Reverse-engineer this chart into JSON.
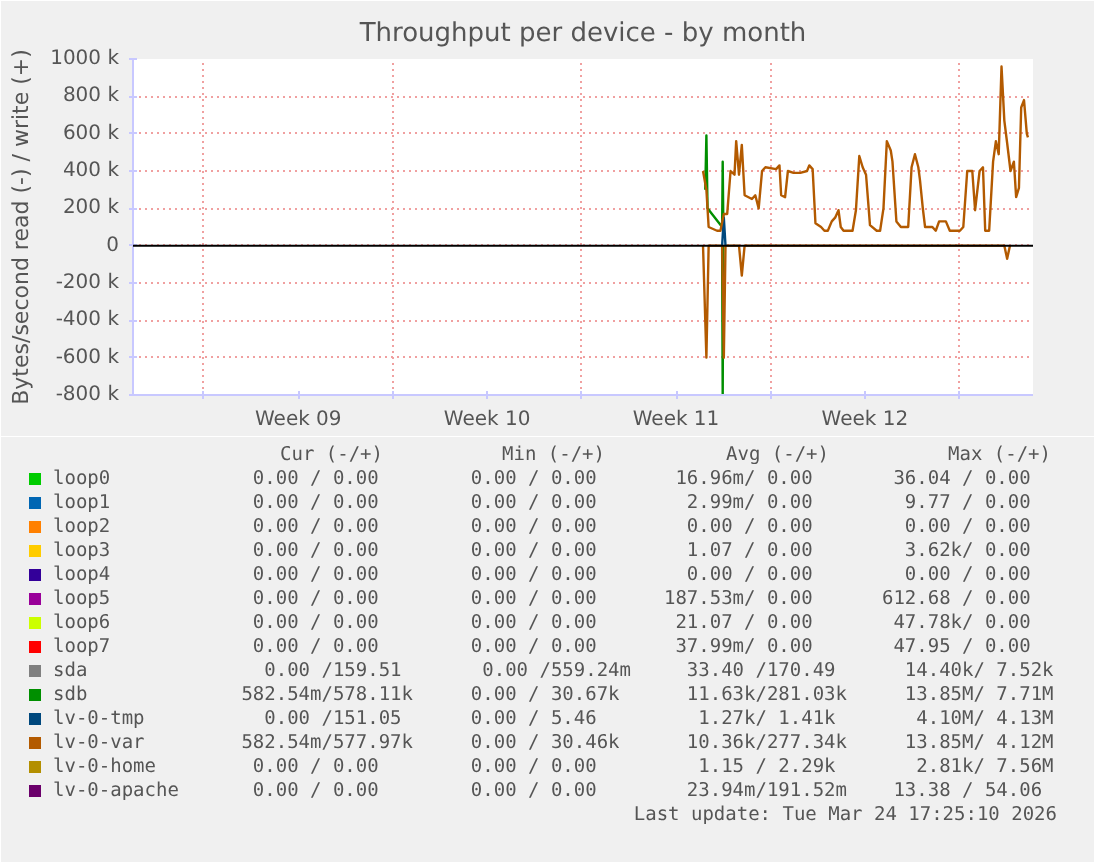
{
  "chart_data": {
    "type": "line",
    "title": "Throughput per device - by month",
    "ylabel": "Bytes/second read (-) / write (+)",
    "xlim": [
      "2026-02-20T09:00",
      "2026-03-25T17:30"
    ],
    "xticks": [
      {
        "value": "2026-02-23T00:00",
        "label": null
      },
      {
        "value": "2026-02-26T12:00",
        "label": "Week 09"
      },
      {
        "value": "2026-03-02T00:00",
        "label": null
      },
      {
        "value": "2026-03-05T12:00",
        "label": "Week 10"
      },
      {
        "value": "2026-03-09T00:00",
        "label": null
      },
      {
        "value": "2026-03-12T12:00",
        "label": "Week 11"
      },
      {
        "value": "2026-03-16T00:00",
        "label": null
      },
      {
        "value": "2026-03-19T12:00",
        "label": "Week 12"
      },
      {
        "value": "2026-03-23T00:00",
        "label": null
      }
    ],
    "ylim": [
      -800000,
      1000000
    ],
    "yticks": [
      {
        "value": -800000,
        "label": "-800 k"
      },
      {
        "value": -600000,
        "label": "-600 k"
      },
      {
        "value": -400000,
        "label": "-400 k"
      },
      {
        "value": -200000,
        "label": "-200 k"
      },
      0,
      {
        "value": 200000,
        "label": "200 k"
      },
      {
        "value": 400000,
        "label": "400 k"
      },
      {
        "value": 600000,
        "label": "600 k"
      },
      {
        "value": 800000,
        "label": "800 k"
      },
      {
        "value": 1000000,
        "label": "1000 k"
      }
    ],
    "grid": true,
    "legend": "bottom",
    "ref_lines": [
      {
        "axis": "y",
        "value": 0,
        "color": "#000000"
      }
    ],
    "series": [
      {
        "name": "loop0",
        "color": "#00cc00"
      },
      {
        "name": "loop1",
        "color": "#0066b3"
      },
      {
        "name": "loop2",
        "color": "#ff8000"
      },
      {
        "name": "loop3",
        "color": "#ffcc00"
      },
      {
        "name": "loop4",
        "color": "#330099"
      },
      {
        "name": "loop5",
        "color": "#990099"
      },
      {
        "name": "loop6",
        "color": "#ccff00"
      },
      {
        "name": "loop7",
        "color": "#ff0000"
      },
      {
        "name": "sda",
        "color": "#808080"
      },
      {
        "name": "sdb",
        "color": "#008f00",
        "x": [
          "2026-03-13T14:00",
          "2026-03-13T15:00",
          "2026-03-13T16:00",
          "2026-03-14T05:00",
          "2026-03-14T05:30",
          "2026-03-14T06:00"
        ],
        "values": [
          300000,
          590000,
          200000,
          100000,
          450000,
          150000
        ]
      },
      {
        "name": "lv-0-tmp",
        "color": "#00487d",
        "x": [
          "2026-03-14T05:00",
          "2026-03-14T06:30",
          "2026-03-14T08:00"
        ],
        "values": [
          0,
          150000,
          0
        ]
      },
      {
        "name": "lv-0-var",
        "color": "#b35a00",
        "x": [
          "2026-03-13T12:00",
          "2026-03-13T15:00",
          "2026-03-13T17:00",
          "2026-03-14T00:30",
          "2026-03-14T03:30",
          "2026-03-14T06:30",
          "2026-03-14T09:30",
          "2026-03-14T12:30",
          "2026-03-14T16:00",
          "2026-03-14T17:30",
          "2026-03-14T20:00",
          "2026-03-14T22:30",
          "2026-03-15T01:00",
          "2026-03-15T07:30",
          "2026-03-15T10:30",
          "2026-03-15T13:30",
          "2026-03-15T16:30",
          "2026-03-15T19:30",
          "2026-03-16T05:00",
          "2026-03-16T08:00",
          "2026-03-16T09:30",
          "2026-03-16T13:00",
          "2026-03-16T15:30",
          "2026-03-16T20:30",
          "2026-03-17T02:30",
          "2026-03-17T08:30",
          "2026-03-17T10:30",
          "2026-03-17T13:30",
          "2026-03-17T16:00",
          "2026-03-17T21:00",
          "2026-03-18T00:00",
          "2026-03-18T03:00",
          "2026-03-18T06:30",
          "2026-03-18T09:30",
          "2026-03-18T12:30",
          "2026-03-18T14:30",
          "2026-03-18T17:00",
          "2026-03-19T01:00",
          "2026-03-19T04:00",
          "2026-03-19T07:00",
          "2026-03-19T10:00",
          "2026-03-19T13:00",
          "2026-03-19T16:30",
          "2026-03-19T22:30",
          "2026-03-20T01:30",
          "2026-03-20T04:30",
          "2026-03-20T07:30",
          "2026-03-20T11:00",
          "2026-03-20T12:30",
          "2026-03-20T16:00",
          "2026-03-20T20:00",
          "2026-03-21T02:30",
          "2026-03-21T05:30",
          "2026-03-21T08:30",
          "2026-03-21T11:30",
          "2026-03-21T13:00",
          "2026-03-21T15:30",
          "2026-03-21T17:30",
          "2026-03-22T00:00",
          "2026-03-22T03:00",
          "2026-03-22T06:00",
          "2026-03-22T12:00",
          "2026-03-22T15:30",
          "2026-03-23T00:30",
          "2026-03-23T03:30",
          "2026-03-23T07:00",
          "2026-03-23T11:30",
          "2026-03-23T14:00",
          "2026-03-23T18:00",
          "2026-03-23T21:00",
          "2026-03-23T23:00",
          "2026-03-24T02:30",
          "2026-03-24T06:00",
          "2026-03-24T08:30",
          "2026-03-24T11:00",
          "2026-03-24T13:30",
          "2026-03-24T16:00",
          "2026-03-24T18:30",
          "2026-03-24T21:30",
          "2026-03-25T00:30",
          "2026-03-25T02:30",
          "2026-03-25T05:00",
          "2026-03-25T07:00",
          "2026-03-25T09:30",
          "2026-03-25T12:00",
          "2026-03-25T13:00"
        ],
        "values": [
          400000,
          300000,
          100000,
          80000,
          80000,
          170000,
          170000,
          400000,
          380000,
          560000,
          380000,
          540000,
          270000,
          250000,
          270000,
          200000,
          400000,
          420000,
          410000,
          430000,
          270000,
          260000,
          400000,
          390000,
          390000,
          400000,
          430000,
          410000,
          120000,
          100000,
          80000,
          80000,
          130000,
          150000,
          190000,
          100000,
          80000,
          80000,
          190000,
          480000,
          420000,
          380000,
          110000,
          80000,
          80000,
          200000,
          560000,
          510000,
          450000,
          130000,
          100000,
          100000,
          420000,
          490000,
          420000,
          350000,
          200000,
          100000,
          100000,
          80000,
          130000,
          130000,
          80000,
          80000,
          100000,
          400000,
          400000,
          190000,
          400000,
          420000,
          80000,
          80000,
          450000,
          560000,
          490000,
          960000,
          670000,
          550000,
          400000,
          450000,
          260000,
          310000,
          740000,
          780000,
          600000,
          580000
        ]
      },
      {
        "name": "lv-0-home",
        "color": "#b38f00"
      },
      {
        "name": "lv-0-apache",
        "color": "#6b006b"
      },
      {
        "color": "#008f00",
        "x": [
          "2026-03-14T05:00",
          "2026-03-14T05:30",
          "2026-03-14T06:00"
        ],
        "values": [
          0,
          -800000,
          0
        ]
      },
      {
        "color": "#b35a00",
        "x": [
          "2026-03-13T12:00",
          "2026-03-13T15:00",
          "2026-03-13T17:00",
          "2026-03-14T05:00",
          "2026-03-14T06:30",
          "2026-03-14T08:00",
          "2026-03-14T20:00",
          "2026-03-14T22:30",
          "2026-03-15T01:00",
          "2026-03-24T16:00",
          "2026-03-24T18:30",
          "2026-03-24T21:00"
        ],
        "values": [
          0,
          -600000,
          0,
          0,
          -600000,
          0,
          0,
          -160000,
          0,
          0,
          -70000,
          0
        ]
      }
    ],
    "annotations": [
      "Cur (-/+)",
      "Min (-/+)",
      "Avg (-/+)",
      "Max (-/+)",
      "0.00 /   0.00",
      "0.00 /   0.00",
      "16.96m/   0.00",
      "36.04 /   0.00",
      "0.00 /   0.00",
      "0.00 /   0.00",
      "2.99m/   0.00",
      "9.77 /   0.00",
      "0.00 /   0.00",
      "0.00 /   0.00",
      "0.00 /   0.00",
      "0.00 /   0.00",
      "0.00 /   0.00",
      "0.00 /   0.00",
      "1.07 /   0.00",
      "3.62k/   0.00",
      "0.00 /   0.00",
      "0.00 /   0.00",
      "0.00 /   0.00",
      "0.00 /   0.00",
      "0.00 /   0.00",
      "0.00 /   0.00",
      "187.53m/   0.00",
      "612.68 /   0.00",
      "0.00 /   0.00",
      "0.00 /   0.00",
      "21.07 /   0.00",
      "47.78k/   0.00",
      "0.00 /   0.00",
      "0.00 /   0.00",
      "37.99m/   0.00",
      "47.95 /   0.00",
      "0.00 /159.51",
      "0.00 /559.24m",
      "33.40 /170.49",
      "14.40k/  7.52k",
      "582.54m/578.11k",
      "0.00 /  30.67k",
      "11.63k/281.03k",
      "13.85M/  7.71M",
      "0.00 /151.05",
      "0.00 /   5.46",
      "1.27k/  1.41k",
      "4.10M/  4.13M",
      "582.54m/577.97k",
      "0.00 /  30.46k",
      "10.36k/277.34k",
      "13.85M/  4.12M",
      "0.00 /   0.00",
      "0.00 /   0.00",
      "1.15 /  2.29k",
      "2.81k/  7.56M",
      "0.00 /   0.00",
      "0.00 /   0.00",
      "23.94m/191.52m",
      "13.38 /  54.06",
      "Last update: Tue Mar 24 17:25:10 2026"
    ]
  }
}
